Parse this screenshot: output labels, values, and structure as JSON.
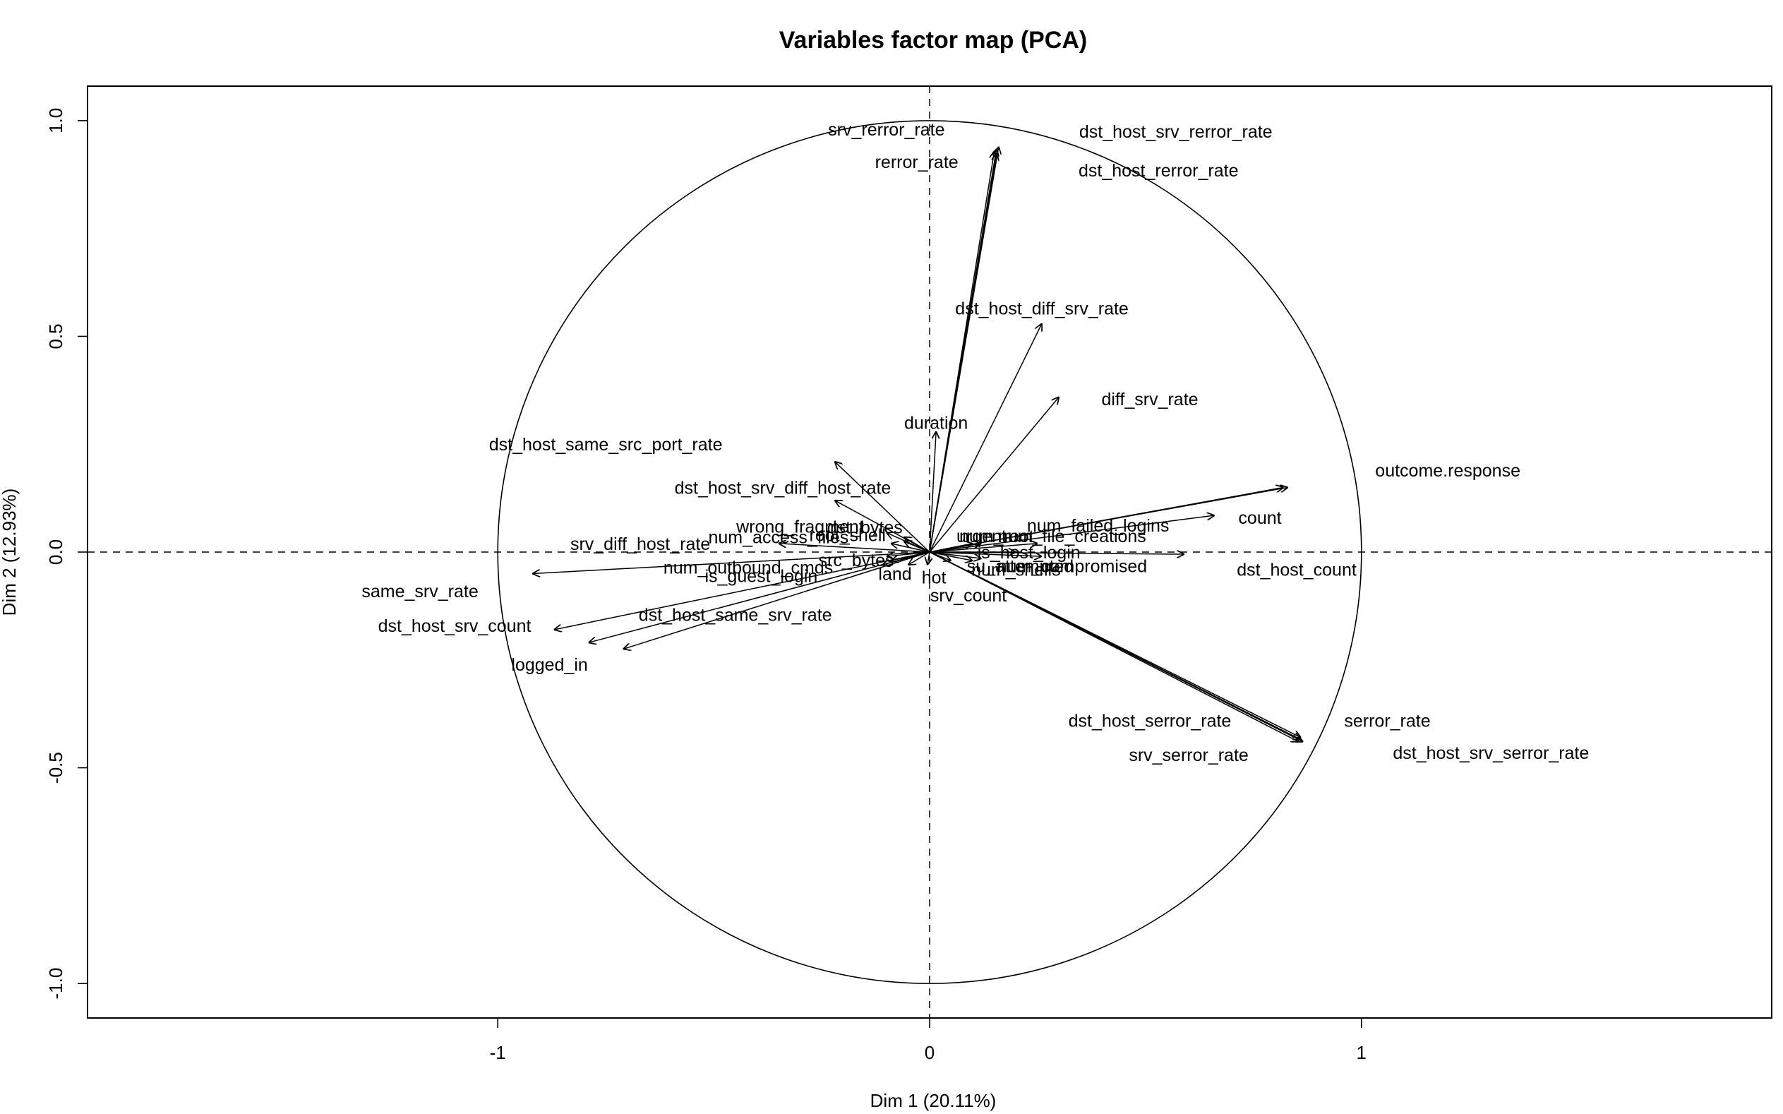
{
  "chart_data": {
    "type": "scatter",
    "subtype": "pca-variables-factor-map",
    "title": "Variables factor map (PCA)",
    "xlabel": "Dim 1 (20.11%)",
    "ylabel": "Dim 2 (12.93%)",
    "xlim": [
      -1.95,
      1.95
    ],
    "ylim": [
      -1.08,
      1.08
    ],
    "xticks": [
      -1,
      0,
      1
    ],
    "xtick_labels": [
      "-1",
      "0",
      "1"
    ],
    "yticks": [
      -1.0,
      -0.5,
      0.0,
      0.5,
      1.0
    ],
    "ytick_labels": [
      "-1.0",
      "-0.5",
      "0.0",
      "0.5",
      "1.0"
    ],
    "unit_circle": true,
    "reference_lines": {
      "x": 0,
      "y": 0,
      "style": "dashed"
    },
    "arrows": [
      {
        "name": "srv_rerror_rate",
        "x": 0.15,
        "y": 0.93,
        "label_x": -0.1,
        "label_y": 0.98
      },
      {
        "name": "rerror_rate",
        "x": 0.16,
        "y": 0.94,
        "label_x": -0.03,
        "label_y": 0.905
      },
      {
        "name": "dst_host_srv_rerror_rate",
        "x": 0.155,
        "y": 0.935,
        "label_x": 0.57,
        "label_y": 0.975
      },
      {
        "name": "dst_host_rerror_rate",
        "x": 0.155,
        "y": 0.925,
        "label_x": 0.53,
        "label_y": 0.885
      },
      {
        "name": "dst_host_diff_srv_rate",
        "x": 0.26,
        "y": 0.53,
        "label_x": 0.26,
        "label_y": 0.565
      },
      {
        "name": "diff_srv_rate",
        "x": 0.3,
        "y": 0.36,
        "label_x": 0.51,
        "label_y": 0.355
      },
      {
        "name": "duration",
        "x": 0.015,
        "y": 0.28,
        "label_x": 0.015,
        "label_y": 0.3
      },
      {
        "name": "dst_host_same_src_port_rate",
        "x": -0.22,
        "y": 0.21,
        "label_x": -0.75,
        "label_y": 0.25
      },
      {
        "name": "dst_host_srv_diff_host_rate",
        "x": -0.22,
        "y": 0.12,
        "label_x": -0.34,
        "label_y": 0.15
      },
      {
        "name": "wrong_fragment",
        "x": -0.1,
        "y": 0.045,
        "label_x": -0.3,
        "label_y": 0.06
      },
      {
        "name": "dst_bytes",
        "x": -0.06,
        "y": 0.035,
        "label_x": -0.15,
        "label_y": 0.058
      },
      {
        "name": "root_shell",
        "x": -0.06,
        "y": 0.025,
        "label_x": -0.19,
        "label_y": 0.04
      },
      {
        "name": "num_access_files",
        "x": -0.09,
        "y": 0.02,
        "label_x": -0.35,
        "label_y": 0.035
      },
      {
        "name": "srv_diff_host_rate",
        "x": -0.35,
        "y": 0.02,
        "label_x": -0.67,
        "label_y": 0.02
      },
      {
        "name": "num_outbound_cmds",
        "x": -0.1,
        "y": -0.01,
        "label_x": -0.42,
        "label_y": -0.035
      },
      {
        "name": "src_bytes",
        "x": -0.09,
        "y": -0.02,
        "label_x": -0.17,
        "label_y": -0.018
      },
      {
        "name": "is_guest_login",
        "x": -0.11,
        "y": -0.03,
        "label_x": -0.39,
        "label_y": -0.055
      },
      {
        "name": "land",
        "x": -0.05,
        "y": -0.03,
        "label_x": -0.08,
        "label_y": -0.05
      },
      {
        "name": "hot",
        "x": -0.005,
        "y": -0.03,
        "label_x": 0.01,
        "label_y": -0.058
      },
      {
        "name": "srv_count",
        "x": 0.05,
        "y": -0.02,
        "label_x": 0.09,
        "label_y": -0.1
      },
      {
        "name": "same_srv_rate",
        "x": -0.92,
        "y": -0.05,
        "label_x": -1.18,
        "label_y": -0.09
      },
      {
        "name": "dst_host_srv_count",
        "x": -0.87,
        "y": -0.18,
        "label_x": -1.1,
        "label_y": -0.17
      },
      {
        "name": "dst_host_same_srv_rate",
        "x": -0.79,
        "y": -0.21,
        "label_x": -0.45,
        "label_y": -0.145
      },
      {
        "name": "logged_in",
        "x": -0.71,
        "y": -0.225,
        "label_x": -0.88,
        "label_y": -0.26
      },
      {
        "name": "num_failed_logins",
        "x": 0.66,
        "y": 0.085,
        "label_x": 0.39,
        "label_y": 0.062
      },
      {
        "name": "count",
        "x": 0.82,
        "y": 0.15,
        "label_x": 0.765,
        "label_y": 0.08
      },
      {
        "name": "urgent",
        "x": 0.1,
        "y": 0.02,
        "label_x": 0.12,
        "label_y": 0.038
      },
      {
        "name": "num_root",
        "x": 0.12,
        "y": 0.02,
        "label_x": 0.155,
        "label_y": 0.038
      },
      {
        "name": "num_file_creations",
        "x": 0.25,
        "y": 0.02,
        "label_x": 0.33,
        "label_y": 0.038
      },
      {
        "name": "is_host_login",
        "x": 0.2,
        "y": 0.0,
        "label_x": 0.23,
        "label_y": 0.0
      },
      {
        "name": "dst_host_count",
        "x": 0.59,
        "y": -0.005,
        "label_x": 0.85,
        "label_y": -0.04
      },
      {
        "name": "num_compromised",
        "x": 0.26,
        "y": -0.01,
        "label_x": 0.33,
        "label_y": -0.032
      },
      {
        "name": "num_shells",
        "x": 0.1,
        "y": -0.02,
        "label_x": 0.2,
        "label_y": -0.04
      },
      {
        "name": "su_attempted",
        "x": 0.12,
        "y": -0.015,
        "label_x": 0.21,
        "label_y": -0.032
      },
      {
        "name": "serror_rate",
        "x": 0.86,
        "y": -0.435,
        "label_x": 1.06,
        "label_y": -0.39
      },
      {
        "name": "dst_host_serror_rate",
        "x": 0.86,
        "y": -0.43,
        "label_x": 0.51,
        "label_y": -0.39
      },
      {
        "name": "srv_serror_rate",
        "x": 0.855,
        "y": -0.44,
        "label_x": 0.6,
        "label_y": -0.47
      },
      {
        "name": "dst_host_srv_serror_rate",
        "x": 0.865,
        "y": -0.44,
        "label_x": 1.3,
        "label_y": -0.465
      },
      {
        "name": "outcome.response",
        "x": 0.83,
        "y": 0.15,
        "label_x": 1.2,
        "label_y": 0.19
      }
    ]
  }
}
